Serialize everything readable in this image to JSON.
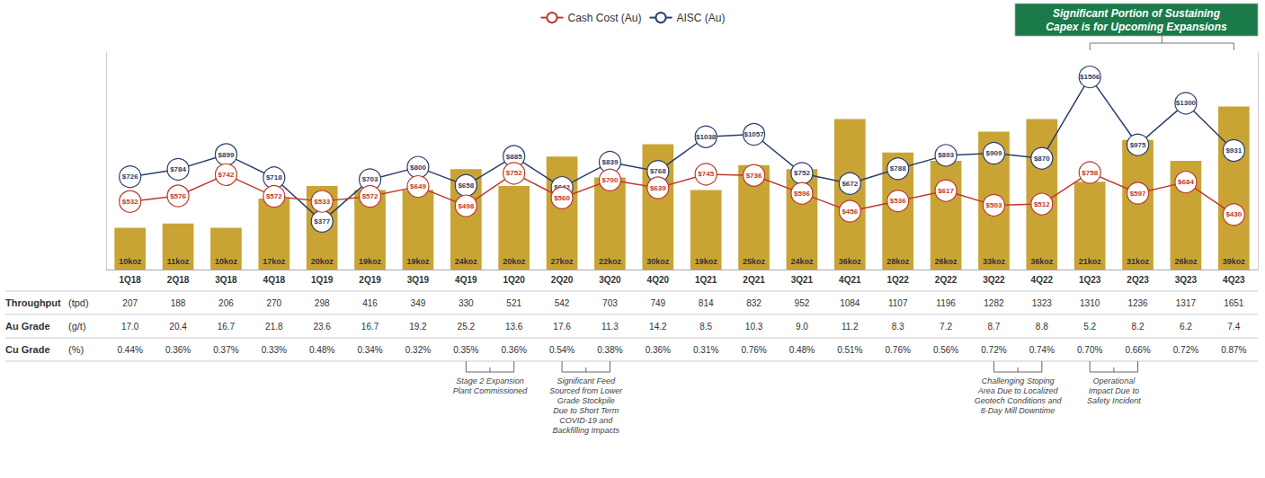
{
  "chart_data": {
    "type": "bar",
    "categories": [
      "1Q18",
      "2Q18",
      "3Q18",
      "4Q18",
      "1Q19",
      "2Q19",
      "3Q19",
      "4Q19",
      "1Q20",
      "2Q20",
      "3Q20",
      "4Q20",
      "1Q21",
      "2Q21",
      "3Q21",
      "4Q21",
      "1Q22",
      "2Q22",
      "3Q22",
      "4Q22",
      "1Q23",
      "2Q23",
      "3Q23",
      "4Q23"
    ],
    "series": [
      {
        "type": "bar",
        "color": "#C9A435",
        "values": [
          10,
          11,
          10,
          17,
          20,
          19,
          19,
          24,
          20,
          27,
          22,
          30,
          19,
          25,
          24,
          36,
          28,
          26,
          33,
          36,
          21,
          31,
          26,
          39
        ],
        "value_labels": [
          "10koz",
          "11koz",
          "10koz",
          "17koz",
          "20koz",
          "19koz",
          "19koz",
          "24koz",
          "20koz",
          "27koz",
          "22koz",
          "30koz",
          "19koz",
          "25koz",
          "24koz",
          "36koz",
          "28koz",
          "26koz",
          "33koz",
          "36koz",
          "21koz",
          "31koz",
          "26koz",
          "39koz"
        ]
      },
      {
        "name": "Cash Cost (Au)",
        "type": "line",
        "axis": "y2",
        "color": "#C0392B",
        "marker": "circle",
        "values": [
          532,
          576,
          742,
          572,
          533,
          572,
          649,
          498,
          752,
          560,
          700,
          639,
          745,
          736,
          596,
          456,
          536,
          617,
          503,
          512,
          758,
          597,
          684,
          430
        ],
        "value_labels": [
          "$532",
          "$576",
          "$742",
          "$572",
          "$533",
          "$572",
          "$649",
          "$498",
          "$752",
          "$560",
          "$700",
          "$639",
          "$745",
          "$736",
          "$596",
          "$456",
          "$536",
          "$617",
          "$503",
          "$512",
          "$758",
          "$597",
          "$684",
          "$430"
        ]
      },
      {
        "name": "AISC (Au)",
        "type": "line",
        "axis": "y2",
        "color": "#2C3E6B",
        "marker": "circle",
        "values": [
          726,
          784,
          899,
          718,
          377,
          703,
          800,
          658,
          885,
          642,
          839,
          768,
          1038,
          1057,
          752,
          672,
          788,
          893,
          909,
          870,
          1506,
          975,
          1300,
          931
        ],
        "value_labels": [
          "$726",
          "$784",
          "$899",
          "$718",
          "$377",
          "$703",
          "$800",
          "$658",
          "$885",
          "$642",
          "$839",
          "$768",
          "$1038",
          "$1057",
          "$752",
          "$672",
          "$788",
          "$893",
          "$909",
          "$870",
          "$1506",
          "$975",
          "$1300",
          "$931"
        ]
      }
    ],
    "ylim": [
      0,
      52
    ],
    "y2lim": [
      0,
      1700
    ],
    "tick_labels": "x",
    "grid": false,
    "legend": "top",
    "data_labels": true,
    "table": {
      "rows": [
        {
          "label": "Throughput",
          "unit": "(tpd)",
          "values": [
            207,
            188,
            206,
            270,
            298,
            416,
            349,
            330,
            521,
            542,
            703,
            749,
            814,
            832,
            952,
            1084,
            1107,
            1196,
            1282,
            1323,
            1310,
            1236,
            1317,
            1651
          ]
        },
        {
          "label": "Au Grade",
          "unit": "(g/t)",
          "values": [
            17.0,
            20.4,
            16.7,
            21.8,
            23.6,
            16.7,
            19.2,
            25.2,
            13.6,
            17.6,
            11.3,
            14.2,
            8.5,
            10.3,
            9.0,
            11.2,
            8.3,
            7.2,
            8.7,
            8.8,
            5.2,
            8.2,
            6.2,
            7.4
          ],
          "value_labels": [
            "17.0",
            "20.4",
            "16.7",
            "21.8",
            "23.6",
            "16.7",
            "19.2",
            "25.2",
            "13.6",
            "17.6",
            "11.3",
            "14.2",
            "8.5",
            "10.3",
            "9.0",
            "11.2",
            "8.3",
            "7.2",
            "8.7",
            "8.8",
            "5.2",
            "8.2",
            "6.2",
            "7.4"
          ]
        },
        {
          "label": "Cu Grade",
          "unit": "(%)",
          "values": [
            0.44,
            0.36,
            0.37,
            0.33,
            0.48,
            0.34,
            0.32,
            0.35,
            0.36,
            0.54,
            0.38,
            0.36,
            0.31,
            0.76,
            0.48,
            0.51,
            0.76,
            0.56,
            0.72,
            0.74,
            0.7,
            0.66,
            0.72,
            0.87
          ],
          "value_labels": [
            "0.44%",
            "0.36%",
            "0.37%",
            "0.33%",
            "0.48%",
            "0.34%",
            "0.32%",
            "0.35%",
            "0.36%",
            "0.54%",
            "0.38%",
            "0.36%",
            "0.31%",
            "0.76%",
            "0.48%",
            "0.51%",
            "0.76%",
            "0.56%",
            "0.72%",
            "0.74%",
            "0.70%",
            "0.66%",
            "0.72%",
            "0.87%"
          ]
        }
      ]
    },
    "annotations": [
      {
        "text": "Stage 2 Expansion\nPlant Commissioned",
        "span": [
          "4Q19",
          "1Q20"
        ]
      },
      {
        "text": "Significant Feed\nSourced from Lower\nGrade Stockpile\nDue to Short Term\nCOVID-19 and\nBackfilling Impacts",
        "span": [
          "2Q20",
          "3Q20"
        ]
      },
      {
        "text": "Challenging Stoping\nArea Due to Localized\nGeotech Conditions and\n8-Day Mill Downtime",
        "span": [
          "3Q22",
          "4Q22"
        ]
      },
      {
        "text": "Operational\nImpact Due to\nSafety Incident",
        "span": [
          "1Q23",
          "2Q23"
        ]
      }
    ],
    "callout": {
      "text": "Significant Portion of Sustaining\nCapex is for Upcoming Expansions",
      "span": [
        "1Q23",
        "4Q23"
      ],
      "color": "#1A7A4A"
    }
  }
}
